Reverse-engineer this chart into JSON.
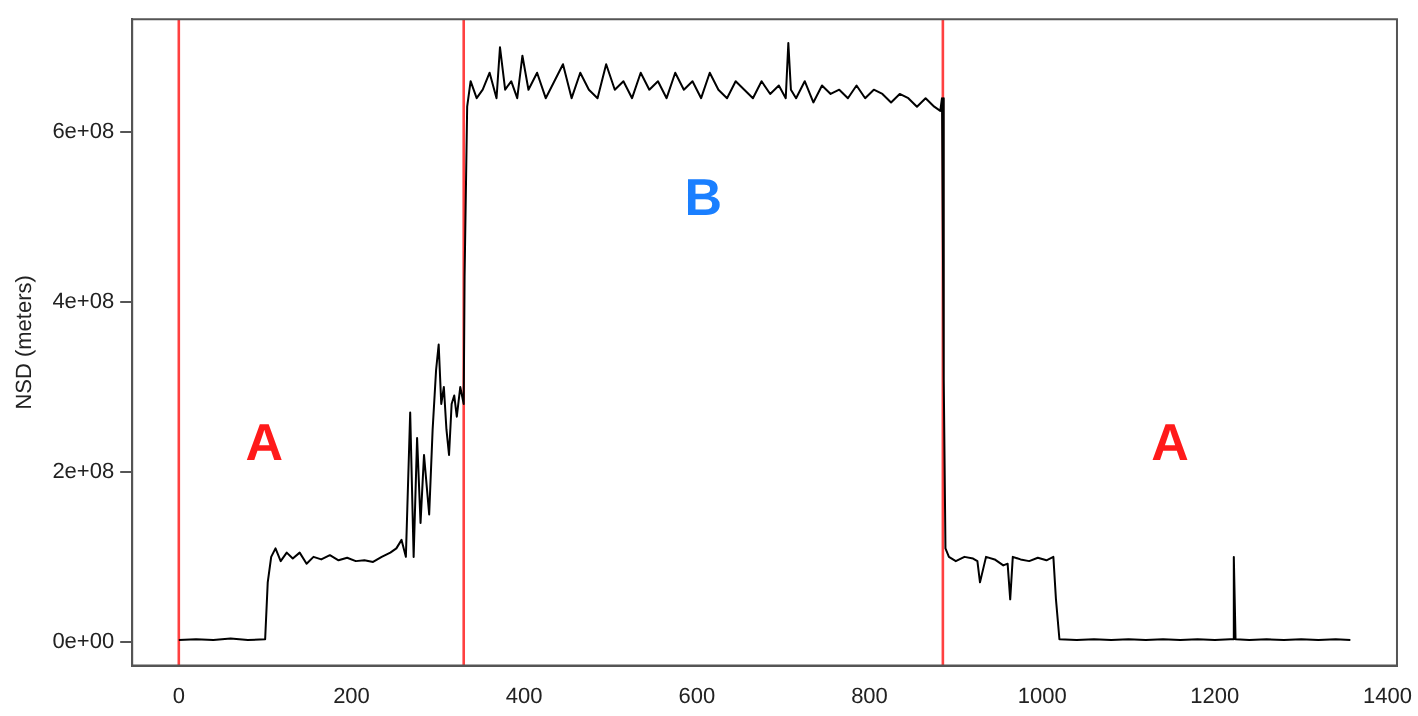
{
  "chart_data": {
    "type": "line",
    "ylabel": "NSD (meters)",
    "x": [
      0,
      20,
      40,
      60,
      80,
      100,
      103,
      107,
      112,
      118,
      125,
      132,
      140,
      148,
      156,
      165,
      175,
      185,
      195,
      205,
      215,
      225,
      235,
      245,
      252,
      258,
      263,
      268,
      272,
      276,
      280,
      284,
      290,
      294,
      298,
      301,
      304,
      307,
      310,
      313,
      316,
      319,
      322,
      326,
      330,
      331,
      334,
      338,
      345,
      352,
      360,
      368,
      372,
      378,
      385,
      392,
      398,
      405,
      415,
      425,
      435,
      445,
      455,
      465,
      475,
      485,
      495,
      505,
      515,
      525,
      535,
      545,
      555,
      565,
      575,
      585,
      595,
      605,
      615,
      625,
      635,
      645,
      655,
      665,
      675,
      685,
      695,
      703,
      706,
      709,
      715,
      725,
      735,
      745,
      755,
      765,
      775,
      785,
      795,
      805,
      815,
      825,
      835,
      845,
      855,
      865,
      875,
      882,
      884,
      886,
      888,
      892,
      900,
      910,
      920,
      925,
      928,
      935,
      945,
      955,
      960,
      963,
      966,
      975,
      985,
      995,
      1005,
      1013,
      1016,
      1020,
      1040,
      1060,
      1080,
      1100,
      1120,
      1140,
      1160,
      1180,
      1200,
      1218,
      1221,
      1222,
      1224,
      1240,
      1260,
      1280,
      1300,
      1320,
      1340,
      1357
    ],
    "values": [
      2000000,
      3000000,
      2000000,
      4000000,
      2000000,
      3000000,
      70000000,
      100000000,
      110000000,
      95000000,
      105000000,
      98000000,
      105000000,
      92000000,
      100000000,
      97000000,
      102000000,
      96000000,
      99000000,
      95000000,
      96000000,
      94000000,
      100000000,
      105000000,
      110000000,
      120000000,
      100000000,
      270000000,
      100000000,
      240000000,
      140000000,
      220000000,
      150000000,
      250000000,
      320000000,
      350000000,
      280000000,
      300000000,
      250000000,
      220000000,
      280000000,
      290000000,
      265000000,
      300000000,
      280000000,
      430000000,
      630000000,
      660000000,
      640000000,
      650000000,
      670000000,
      640000000,
      700000000,
      650000000,
      660000000,
      640000000,
      690000000,
      650000000,
      670000000,
      640000000,
      660000000,
      680000000,
      640000000,
      670000000,
      650000000,
      640000000,
      680000000,
      650000000,
      660000000,
      640000000,
      670000000,
      650000000,
      660000000,
      640000000,
      670000000,
      650000000,
      660000000,
      640000000,
      670000000,
      650000000,
      640000000,
      660000000,
      650000000,
      640000000,
      660000000,
      645000000,
      655000000,
      640000000,
      705000000,
      650000000,
      640000000,
      660000000,
      635000000,
      655000000,
      645000000,
      650000000,
      640000000,
      655000000,
      640000000,
      650000000,
      645000000,
      635000000,
      645000000,
      640000000,
      630000000,
      640000000,
      630000000,
      625000000,
      640000000,
      310000000,
      110000000,
      100000000,
      95000000,
      100000000,
      98000000,
      95000000,
      70000000,
      100000000,
      97000000,
      90000000,
      92000000,
      50000000,
      100000000,
      97000000,
      95000000,
      99000000,
      96000000,
      100000000,
      50000000,
      3000000,
      2000000,
      3000000,
      2000000,
      3000000,
      2000000,
      3000000,
      2000000,
      3000000,
      2000000,
      3000000,
      3000000,
      100000000,
      3000000,
      2000000,
      3000000,
      2000000,
      3000000,
      2000000,
      3000000,
      2000000
    ],
    "color": "#000000",
    "xlim": [
      -54,
      1411
    ],
    "xticks": [
      0,
      200,
      400,
      600,
      800,
      1000,
      1200,
      1400
    ],
    "ylim": [
      -28000000,
      733000000
    ],
    "yticks": [
      {
        "value": 0,
        "label": "0e+00"
      },
      {
        "value": 200000000,
        "label": "2e+08"
      },
      {
        "value": 400000000,
        "label": "4e+08"
      },
      {
        "value": 600000000,
        "label": "6e+08"
      }
    ],
    "ref_lines": [
      {
        "axis": "x",
        "value": 0,
        "color": "#ff4040"
      },
      {
        "axis": "x",
        "value": 330,
        "color": "#ff4040"
      },
      {
        "axis": "x",
        "value": 885,
        "color": "#ff4040"
      }
    ],
    "annotations": [
      "A",
      "B",
      "A"
    ],
    "grid": false,
    "legend": false,
    "marker": "none",
    "line_style": "solid"
  }
}
